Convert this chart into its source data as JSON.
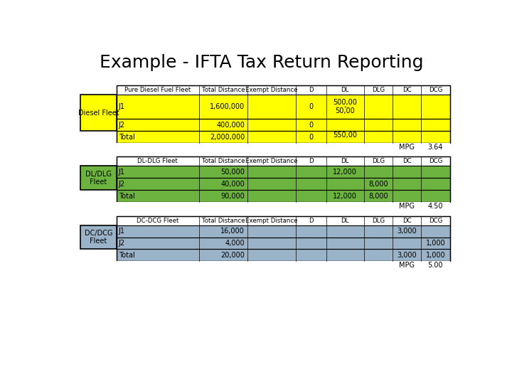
{
  "title": "Example - IFTA Tax Return Reporting",
  "title_fontsize": 18,
  "bg_color": "#ffffff",
  "section1": {
    "label": "Diesel Fleet",
    "header_col": "Pure Diesel Fuel Fleet",
    "bg_color": "#ffff00",
    "rows": [
      {
        "id": "J1",
        "total_dist": "1,600,000",
        "D": "0",
        "DL_lines": [
          "500,00",
          "-",
          "50,00"
        ],
        "DLG": "",
        "DC": "",
        "DCG": ""
      },
      {
        "id": "J2",
        "total_dist": "400,000",
        "D": "0",
        "DL_lines": [],
        "DLG": "",
        "DC": "",
        "DCG": ""
      },
      {
        "id": "Total",
        "total_dist": "2,000,000",
        "D": "0",
        "DL_lines": [
          "550,00"
        ],
        "DLG": "",
        "DC": "",
        "DCG": ""
      }
    ],
    "mpg": "3.64"
  },
  "section2": {
    "label": "DL/DLG\nFleet",
    "header_col": "DL-DLG Fleet",
    "bg_color": "#6db33f",
    "rows": [
      {
        "id": "J1",
        "total_dist": "50,000",
        "D": "",
        "DL": "12,000",
        "DLG": "",
        "DC": "",
        "DCG": ""
      },
      {
        "id": "J2",
        "total_dist": "40,000",
        "D": "",
        "DL": "",
        "DLG": "8,000",
        "DC": "",
        "DCG": ""
      },
      {
        "id": "Total",
        "total_dist": "90,000",
        "D": "",
        "DL": "12,000",
        "DLG": "8,000",
        "DC": "",
        "DCG": ""
      }
    ],
    "mpg": "4.50"
  },
  "section3": {
    "label": "DC/DCG\nFleet",
    "header_col": "DC-DCG Fleet",
    "bg_color": "#9ab3c8",
    "rows": [
      {
        "id": "J1",
        "total_dist": "16,000",
        "D": "",
        "DL": "",
        "DLG": "",
        "DC": "3,000",
        "DCG": ""
      },
      {
        "id": "J2",
        "total_dist": "4,000",
        "D": "",
        "DL": "",
        "DLG": "",
        "DC": "",
        "DCG": "1,000"
      },
      {
        "id": "Total",
        "total_dist": "20,000",
        "D": "",
        "DL": "",
        "DLG": "",
        "DC": "3,000",
        "DCG": "1,000"
      }
    ],
    "mpg": "5.00"
  },
  "col_headers": [
    "",
    "Total Distance",
    "Exempt Distance",
    "D",
    "DL",
    "DLG",
    "DC",
    "DCG"
  ]
}
